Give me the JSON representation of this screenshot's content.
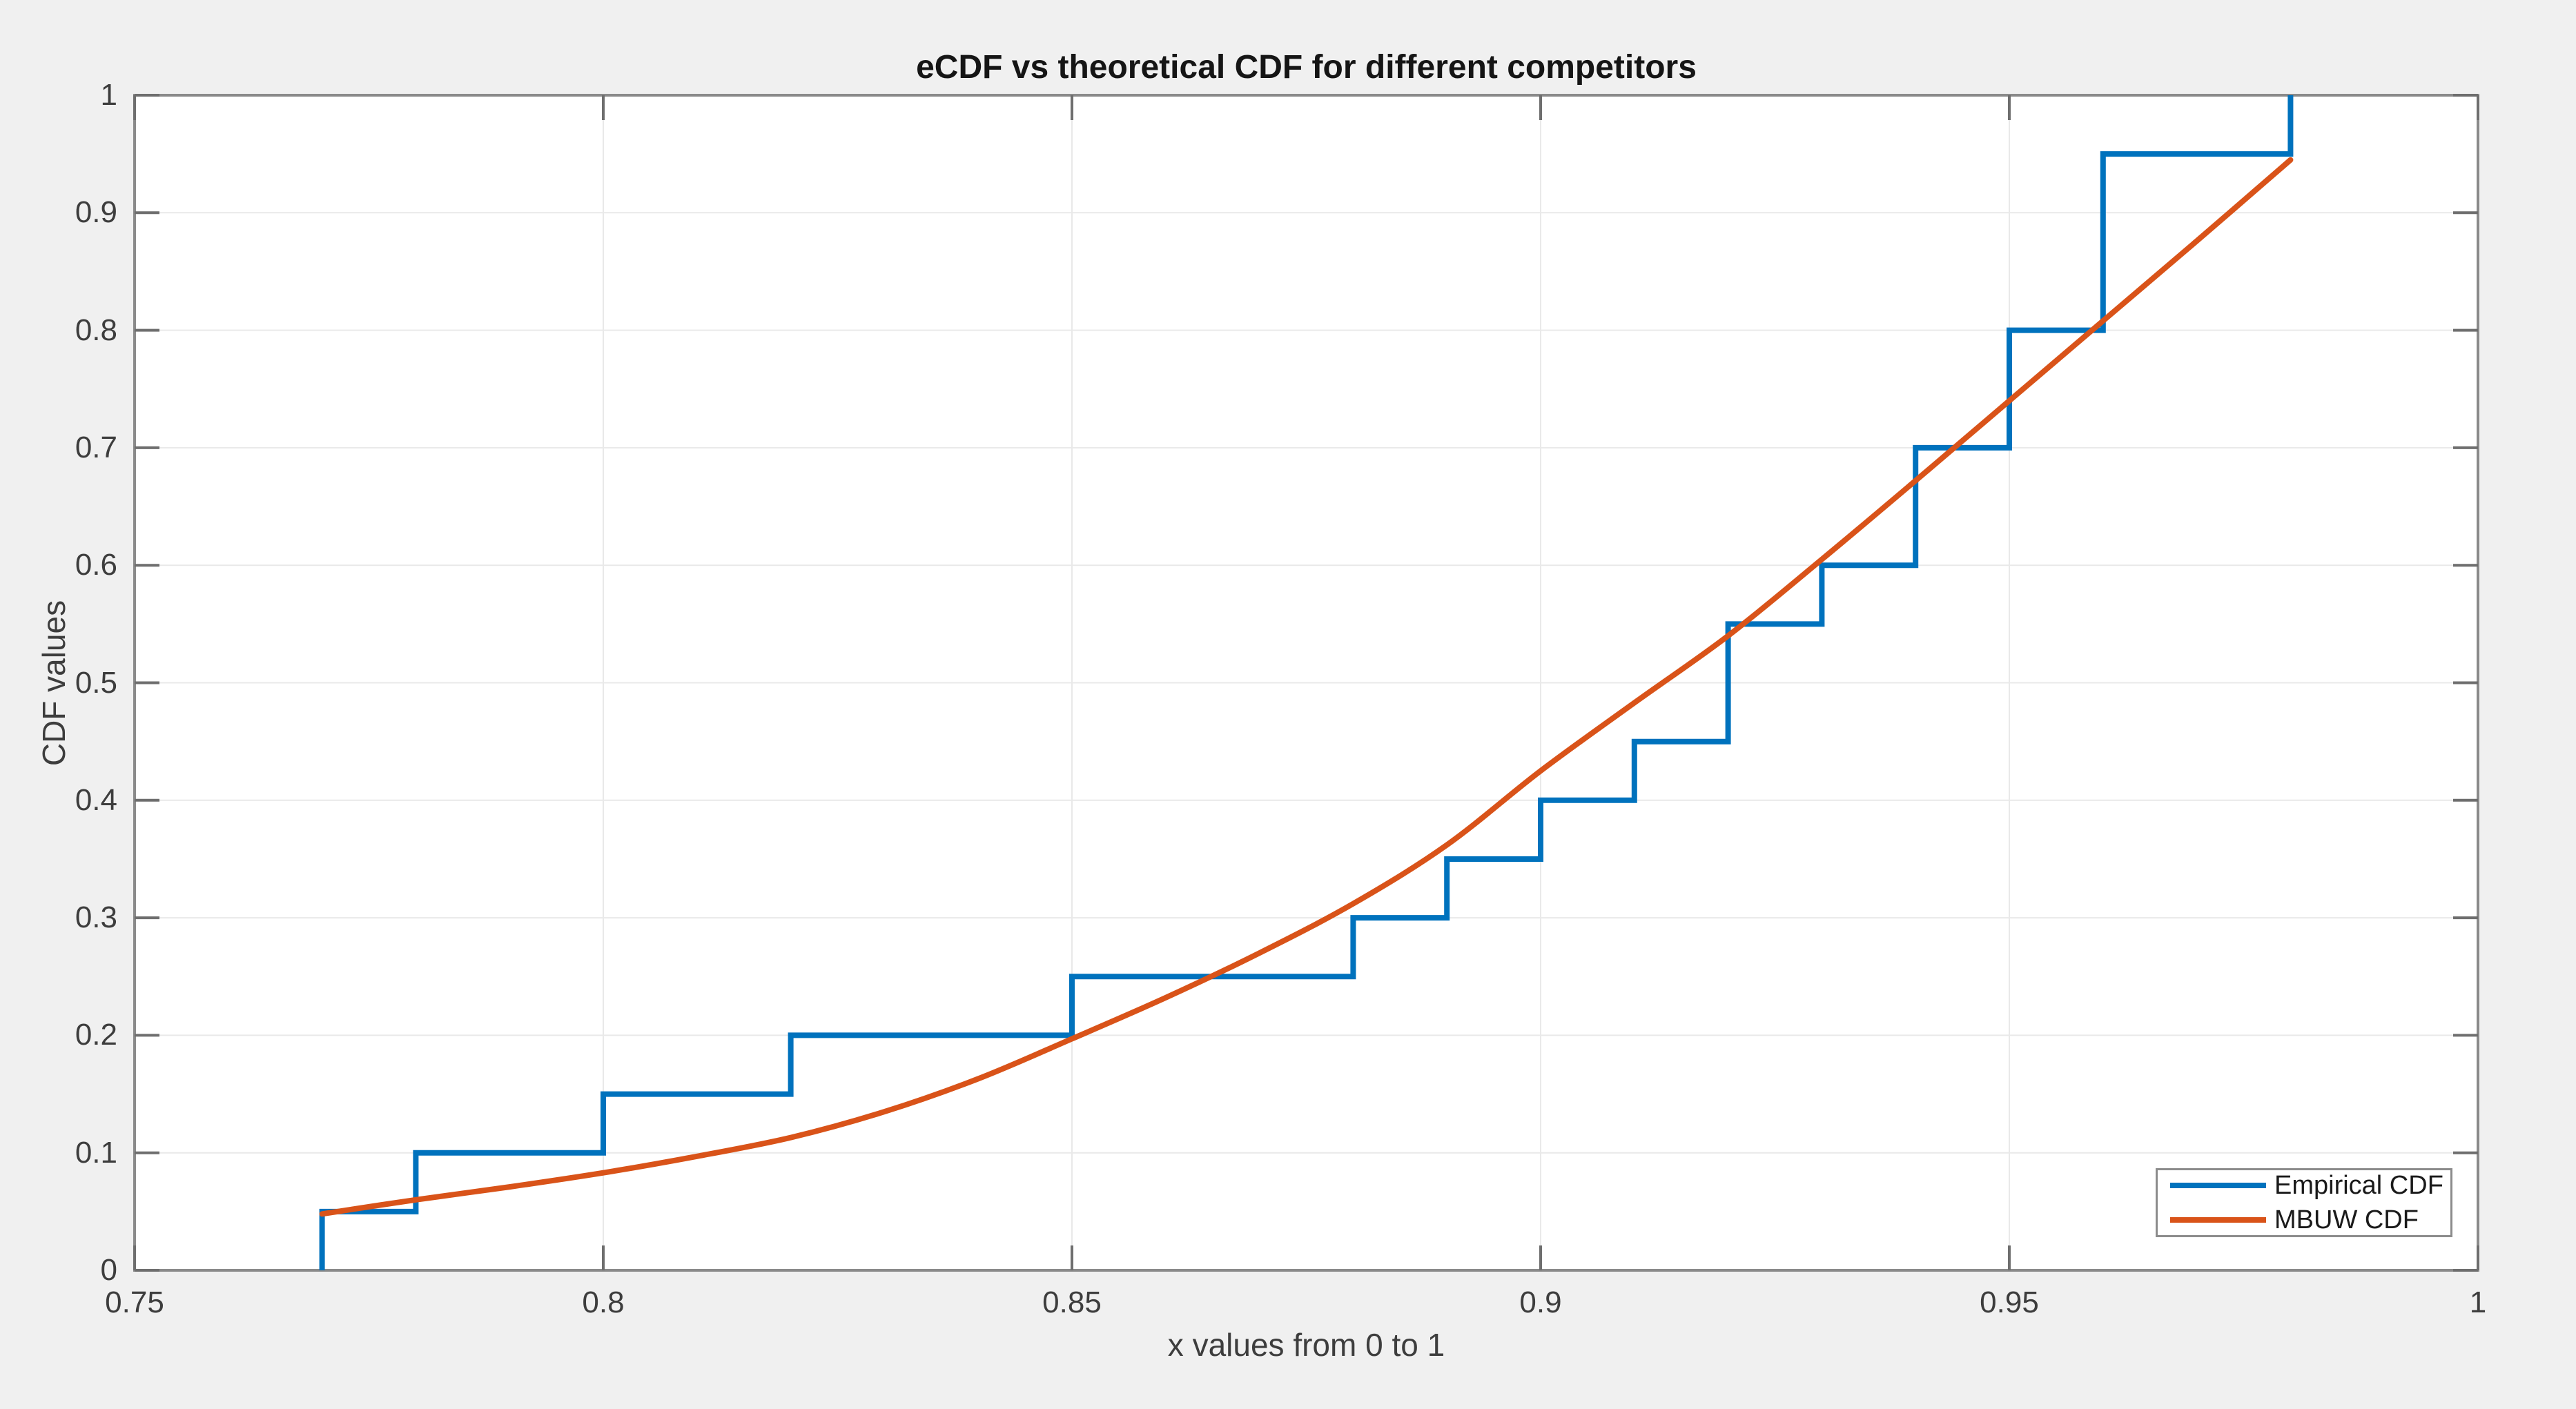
{
  "figure": {
    "background": "#f0f0f0",
    "plot_background": "#ffffff",
    "axis_box_color": "#8a8a8a",
    "tick_mark_color": "#6e6e6e",
    "grid_color": "#e9e9e9",
    "text_color": "#3d3d3d",
    "title_color": "#151515"
  },
  "chart_data": {
    "type": "line",
    "title": "eCDF vs theoretical CDF for different competitors",
    "xlabel": "x values from 0 to 1",
    "ylabel": "CDF values",
    "xlim": [
      0.75,
      1
    ],
    "ylim": [
      0,
      1
    ],
    "x_ticks": [
      0.75,
      0.8,
      0.85,
      0.9,
      0.95,
      1
    ],
    "x_tick_labels": [
      "0.75",
      "0.8",
      "0.85",
      "0.9",
      "0.95",
      "1"
    ],
    "y_ticks": [
      0,
      0.1,
      0.2,
      0.3,
      0.4,
      0.5,
      0.6,
      0.7,
      0.8,
      0.9,
      1
    ],
    "y_tick_labels": [
      "0",
      "0.1",
      "0.2",
      "0.3",
      "0.4",
      "0.5",
      "0.6",
      "0.7",
      "0.8",
      "0.9",
      "1"
    ],
    "grid": true,
    "legend_position": "southeast",
    "series": [
      {
        "name": "Empirical CDF",
        "render": "step",
        "color": "#0072bd",
        "line_width": 8,
        "jump_per_point": 0.05,
        "sample_x": [
          0.77,
          0.78,
          0.8,
          0.82,
          0.85,
          0.88,
          0.89,
          0.9,
          0.91,
          0.92,
          0.92,
          0.93,
          0.94,
          0.94,
          0.95,
          0.95,
          0.96,
          0.96,
          0.96,
          0.98
        ],
        "step_levels": [
          0.05,
          0.1,
          0.15,
          0.2,
          0.25,
          0.3,
          0.35,
          0.4,
          0.45,
          0.55,
          0.6,
          0.7,
          0.8,
          0.95,
          1.0
        ]
      },
      {
        "name": "MBUW CDF",
        "render": "smooth",
        "color": "#d95319",
        "line_width": 8,
        "x": [
          0.77,
          0.78,
          0.79,
          0.8,
          0.81,
          0.82,
          0.83,
          0.84,
          0.85,
          0.86,
          0.87,
          0.88,
          0.89,
          0.9,
          0.91,
          0.92,
          0.93,
          0.94,
          0.95,
          0.96,
          0.97,
          0.98
        ],
        "y": [
          0.048,
          0.06,
          0.071,
          0.083,
          0.097,
          0.113,
          0.135,
          0.163,
          0.197,
          0.232,
          0.27,
          0.312,
          0.362,
          0.425,
          0.483,
          0.54,
          0.605,
          0.672,
          0.74,
          0.808,
          0.876,
          0.945
        ]
      }
    ]
  },
  "legend": {
    "entries": [
      {
        "label": "Empirical CDF",
        "color": "#0072bd"
      },
      {
        "label": "MBUW CDF",
        "color": "#d95319"
      }
    ]
  }
}
